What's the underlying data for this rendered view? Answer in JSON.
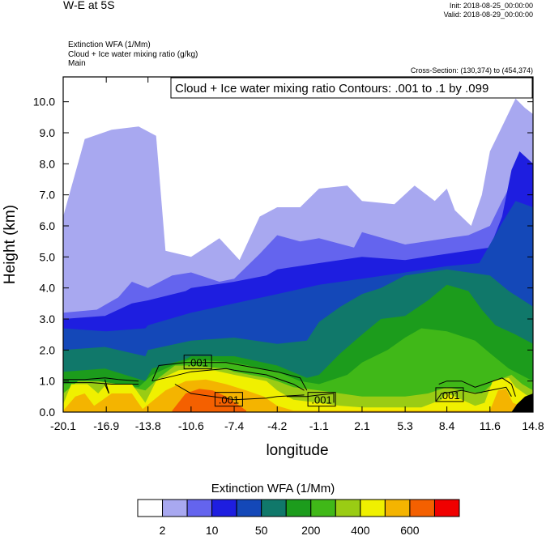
{
  "header": {
    "title": "W-E at 5S",
    "init": "Init: 2018-08-25_00:00:00",
    "valid": "Valid: 2018-08-29_00:00:00",
    "fields": [
      "Extinction WFA   (1/Mm)",
      "Cloud + Ice water mixing ratio   (g/kg)",
      "Main"
    ],
    "cross_section": "Cross-Section: (130,374) to (454,374)"
  },
  "chart_data": {
    "type": "heatmap",
    "title": "W-E at 5S",
    "xlabel": "longitude",
    "ylabel": "Height (km)",
    "xlim": [
      -20.1,
      14.8
    ],
    "ylim": [
      0.0,
      10.8
    ],
    "x_ticks": [
      "-20.1",
      "-16.9",
      "-13.8",
      "-10.6",
      "-7.4",
      "-4.2",
      "-1.1",
      "2.1",
      "5.3",
      "8.4",
      "11.6",
      "14.8"
    ],
    "y_ticks": [
      "0.0",
      "1.0",
      "2.0",
      "3.0",
      "4.0",
      "5.0",
      "6.0",
      "7.0",
      "8.0",
      "9.0",
      "10.0"
    ],
    "contour_info": "Cloud + Ice water mixing ratio Contours: .001 to .1 by .099",
    "contour_labels": [
      {
        "text": ".001",
        "lon": -10.1,
        "height": 1.6
      },
      {
        "text": ".001",
        "lon": -7.8,
        "height": 0.4
      },
      {
        "text": ".001",
        "lon": -0.9,
        "height": 0.4
      },
      {
        "text": ".001",
        "lon": 8.6,
        "height": 0.55
      }
    ],
    "colorbar": {
      "title": "Extinction WFA  (1/Mm)",
      "colors": [
        "#ffffff",
        "#a8a8f0",
        "#6464ee",
        "#1e1ee0",
        "#1448b8",
        "#10786a",
        "#1c9c1c",
        "#40b818",
        "#9acc14",
        "#f0f000",
        "#f4b400",
        "#f46000",
        "#f00000"
      ],
      "tick_labels": [
        "2",
        "10",
        "50",
        "200",
        "400",
        "600"
      ]
    },
    "layers": [
      {
        "name": "white-20",
        "level": 0,
        "tops": [
          [
            -20.1,
            2.3
          ],
          [
            -16.5,
            2.2
          ],
          [
            -13.8,
            2.4
          ],
          [
            -10.6,
            2.7
          ],
          [
            -7.4,
            3.3
          ],
          [
            -4.2,
            3.8
          ],
          [
            -1.1,
            4.2
          ],
          [
            2.1,
            4.4
          ],
          [
            5.3,
            4.5
          ],
          [
            8.4,
            4.6
          ],
          [
            11.6,
            4.8
          ],
          [
            14.8,
            4.6
          ]
        ]
      },
      {
        "name": "light-lavender",
        "level": 1,
        "tops": [
          [
            -20.1,
            6.3
          ],
          [
            -18.5,
            8.8
          ],
          [
            -16.5,
            9.1
          ],
          [
            -14.5,
            9.2
          ],
          [
            -13.2,
            8.9
          ],
          [
            -12.5,
            5.2
          ],
          [
            -10.6,
            5.0
          ],
          [
            -8.5,
            5.6
          ],
          [
            -7.0,
            4.9
          ],
          [
            -5.5,
            6.3
          ],
          [
            -4.2,
            6.6
          ],
          [
            -2.5,
            6.6
          ],
          [
            -1.1,
            7.2
          ],
          [
            1.0,
            7.3
          ],
          [
            2.1,
            6.8
          ],
          [
            4.5,
            6.7
          ],
          [
            6.0,
            7.3
          ],
          [
            7.5,
            6.8
          ],
          [
            8.4,
            7.2
          ],
          [
            9.0,
            6.5
          ],
          [
            10.2,
            6.0
          ],
          [
            11.0,
            7.0
          ],
          [
            11.6,
            8.4
          ],
          [
            12.5,
            9.2
          ],
          [
            13.5,
            10.1
          ],
          [
            14.2,
            9.8
          ],
          [
            14.8,
            9.6
          ]
        ]
      },
      {
        "name": "medium-blue",
        "level": 2,
        "tops": [
          [
            -20.1,
            3.2
          ],
          [
            -17.6,
            3.3
          ],
          [
            -16.0,
            3.7
          ],
          [
            -15.0,
            4.2
          ],
          [
            -13.8,
            4.0
          ],
          [
            -12.0,
            4.4
          ],
          [
            -10.6,
            4.5
          ],
          [
            -8.5,
            4.2
          ],
          [
            -7.4,
            4.3
          ],
          [
            -5.5,
            5.1
          ],
          [
            -4.2,
            5.7
          ],
          [
            -2.5,
            5.5
          ],
          [
            -1.1,
            5.6
          ],
          [
            1.5,
            5.3
          ],
          [
            2.1,
            5.8
          ],
          [
            5.3,
            5.4
          ],
          [
            8.4,
            5.6
          ],
          [
            10.0,
            5.7
          ],
          [
            11.6,
            6.0
          ],
          [
            12.5,
            6.8
          ],
          [
            13.5,
            7.6
          ],
          [
            14.8,
            7.8
          ]
        ]
      },
      {
        "name": "blue",
        "level": 3,
        "tops": [
          [
            -20.1,
            3.0
          ],
          [
            -17.0,
            3.1
          ],
          [
            -15.0,
            3.5
          ],
          [
            -13.8,
            3.6
          ],
          [
            -11.0,
            3.9
          ],
          [
            -10.6,
            4.0
          ],
          [
            -7.4,
            4.2
          ],
          [
            -5.0,
            4.4
          ],
          [
            -4.2,
            4.6
          ],
          [
            -1.1,
            4.8
          ],
          [
            2.1,
            5.0
          ],
          [
            5.3,
            4.9
          ],
          [
            8.4,
            5.1
          ],
          [
            11.6,
            5.3
          ],
          [
            12.5,
            6.3
          ],
          [
            13.2,
            7.8
          ],
          [
            13.8,
            8.4
          ],
          [
            14.8,
            8.0
          ]
        ]
      },
      {
        "name": "navy-blue",
        "level": 4,
        "tops": [
          [
            -20.1,
            2.7
          ],
          [
            -16.9,
            2.6
          ],
          [
            -14.0,
            2.7
          ],
          [
            -13.8,
            2.8
          ],
          [
            -10.6,
            3.2
          ],
          [
            -7.4,
            3.5
          ],
          [
            -4.2,
            3.8
          ],
          [
            -1.1,
            4.1
          ],
          [
            2.1,
            4.3
          ],
          [
            5.3,
            4.5
          ],
          [
            8.4,
            4.7
          ],
          [
            10.8,
            4.8
          ],
          [
            11.6,
            5.4
          ],
          [
            12.5,
            6.1
          ],
          [
            13.5,
            6.8
          ],
          [
            14.8,
            6.6
          ]
        ]
      },
      {
        "name": "teal",
        "level": 5,
        "tops": [
          [
            -20.1,
            2.0
          ],
          [
            -17.0,
            2.1
          ],
          [
            -14.0,
            1.8
          ],
          [
            -13.8,
            2.0
          ],
          [
            -10.6,
            2.3
          ],
          [
            -7.4,
            2.4
          ],
          [
            -4.2,
            2.2
          ],
          [
            -2.0,
            2.3
          ],
          [
            -1.1,
            2.9
          ],
          [
            0.5,
            3.4
          ],
          [
            2.1,
            3.8
          ],
          [
            3.5,
            4.0
          ],
          [
            5.3,
            4.4
          ],
          [
            8.4,
            4.6
          ],
          [
            11.6,
            4.4
          ],
          [
            13.0,
            3.9
          ],
          [
            14.8,
            3.4
          ]
        ]
      },
      {
        "name": "green",
        "level": 6,
        "tops": [
          [
            -20.1,
            1.3
          ],
          [
            -17.0,
            1.4
          ],
          [
            -14.0,
            1.0
          ],
          [
            -13.5,
            1.4
          ],
          [
            -11.0,
            1.7
          ],
          [
            -10.6,
            1.8
          ],
          [
            -7.4,
            1.8
          ],
          [
            -4.2,
            1.5
          ],
          [
            -2.0,
            1.1
          ],
          [
            -1.1,
            1.2
          ],
          [
            0.5,
            1.9
          ],
          [
            2.1,
            2.5
          ],
          [
            3.5,
            3.0
          ],
          [
            5.3,
            3.1
          ],
          [
            7.0,
            3.6
          ],
          [
            8.4,
            4.1
          ],
          [
            10.0,
            3.9
          ],
          [
            11.0,
            3.3
          ],
          [
            12.0,
            2.8
          ],
          [
            13.5,
            2.5
          ],
          [
            14.8,
            2.2
          ]
        ]
      },
      {
        "name": "light-green",
        "level": 7,
        "tops": [
          [
            -20.1,
            0.9
          ],
          [
            -17.5,
            1.0
          ],
          [
            -14.5,
            0.8
          ],
          [
            -13.5,
            1.2
          ],
          [
            -12.0,
            1.5
          ],
          [
            -10.6,
            1.7
          ],
          [
            -7.4,
            1.6
          ],
          [
            -4.2,
            1.3
          ],
          [
            -2.5,
            1.0
          ],
          [
            -1.1,
            0.9
          ],
          [
            1.0,
            1.2
          ],
          [
            2.1,
            1.6
          ],
          [
            4.0,
            2.0
          ],
          [
            5.3,
            2.4
          ],
          [
            6.5,
            2.7
          ],
          [
            8.4,
            2.6
          ],
          [
            10.5,
            2.3
          ],
          [
            11.6,
            1.9
          ],
          [
            13.0,
            1.4
          ],
          [
            14.8,
            1.0
          ]
        ]
      },
      {
        "name": "yellow-green",
        "level": 8,
        "tops": [
          [
            -20.1,
            0.6
          ],
          [
            -19.0,
            1.0
          ],
          [
            -17.5,
            1.0
          ],
          [
            -16.0,
            0.9
          ],
          [
            -14.0,
            0.7
          ],
          [
            -13.0,
            1.1
          ],
          [
            -11.8,
            1.5
          ],
          [
            -10.6,
            1.5
          ],
          [
            -8.0,
            1.4
          ],
          [
            -7.4,
            1.3
          ],
          [
            -5.0,
            1.1
          ],
          [
            -4.2,
            1.0
          ],
          [
            -3.0,
            0.8
          ],
          [
            -1.1,
            0.7
          ],
          [
            0.5,
            0.6
          ],
          [
            2.1,
            0.5
          ],
          [
            5.3,
            0.5
          ],
          [
            7.0,
            0.6
          ],
          [
            8.4,
            0.8
          ],
          [
            9.5,
            0.7
          ],
          [
            11.0,
            0.6
          ],
          [
            12.0,
            1.0
          ],
          [
            13.2,
            1.2
          ],
          [
            14.0,
            0.9
          ],
          [
            14.8,
            0.7
          ]
        ]
      },
      {
        "name": "yellow",
        "level": 9,
        "tops": [
          [
            -20.1,
            0.25
          ],
          [
            -19.5,
            0.9
          ],
          [
            -18.3,
            0.9
          ],
          [
            -17.5,
            0.6
          ],
          [
            -16.9,
            0.9
          ],
          [
            -15.0,
            0.9
          ],
          [
            -14.0,
            0.3
          ],
          [
            -13.2,
            1.0
          ],
          [
            -11.5,
            1.35
          ],
          [
            -9.5,
            1.4
          ],
          [
            -7.4,
            1.2
          ],
          [
            -5.0,
            1.0
          ],
          [
            -4.2,
            0.7
          ],
          [
            -3.0,
            0.4
          ],
          [
            -1.1,
            0.3
          ],
          [
            0.5,
            0.2
          ],
          [
            2.1,
            0.15
          ],
          [
            6.5,
            0.15
          ],
          [
            8.0,
            0.4
          ],
          [
            8.4,
            0.6
          ],
          [
            9.0,
            0.5
          ],
          [
            10.5,
            0.2
          ],
          [
            11.2,
            0.3
          ],
          [
            11.8,
            1.0
          ],
          [
            13.0,
            1.1
          ],
          [
            13.5,
            0.8
          ],
          [
            14.8,
            0.4
          ]
        ]
      },
      {
        "name": "orange",
        "level": 10,
        "tops": [
          [
            -20.1,
            0.05
          ],
          [
            -19.2,
            0.5
          ],
          [
            -18.5,
            0.6
          ],
          [
            -17.8,
            0.2
          ],
          [
            -16.5,
            0.6
          ],
          [
            -15.0,
            0.6
          ],
          [
            -14.2,
            0.1
          ],
          [
            -12.5,
            0.7
          ],
          [
            -11.0,
            1.0
          ],
          [
            -9.5,
            1.05
          ],
          [
            -8.0,
            0.9
          ],
          [
            -6.5,
            0.7
          ],
          [
            -5.2,
            0.5
          ],
          [
            -4.2,
            0.2
          ],
          [
            -3.0,
            0.05
          ],
          [
            11.6,
            0.05
          ],
          [
            12.2,
            0.7
          ],
          [
            12.8,
            0.75
          ],
          [
            13.3,
            0.3
          ],
          [
            14.8,
            0.05
          ]
        ]
      },
      {
        "name": "dark-orange",
        "level": 11,
        "tops": [
          [
            -12.0,
            0.05
          ],
          [
            -11.0,
            0.6
          ],
          [
            -10.0,
            0.75
          ],
          [
            -9.0,
            0.7
          ],
          [
            -8.0,
            0.5
          ],
          [
            -7.0,
            0.2
          ],
          [
            -6.5,
            0.05
          ]
        ]
      }
    ]
  }
}
